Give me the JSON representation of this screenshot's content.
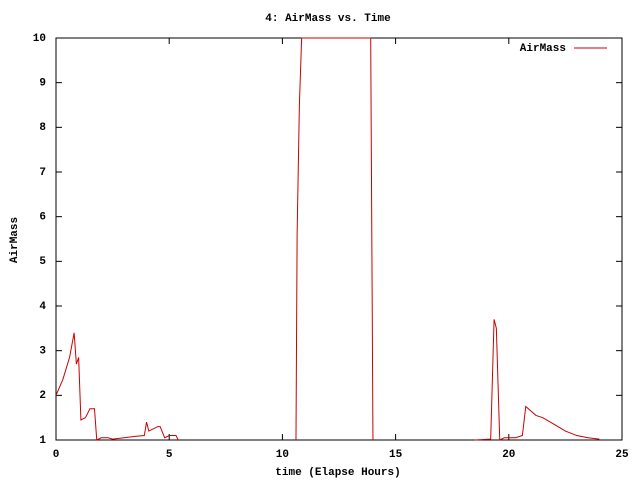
{
  "chart_data": {
    "type": "line",
    "title": "4: AirMass vs. Time",
    "xlabel": "time (Elapse Hours)",
    "ylabel": "AirMass",
    "x": [
      0,
      0.3,
      0.6,
      0.8,
      0.9,
      1.0,
      1.1,
      1.3,
      1.5,
      1.7,
      1.8,
      2.0,
      2.3,
      2.5,
      3.0,
      3.5,
      3.9,
      4.0,
      4.1,
      4.5,
      4.6,
      4.8,
      5.0,
      5.3,
      5.4,
      7,
      10.6,
      10.65,
      10.75,
      10.85,
      13.9,
      13.95,
      14.0,
      16,
      18.5,
      19.2,
      19.35,
      19.45,
      19.6,
      19.8,
      20.3,
      20.6,
      20.75,
      21.2,
      21.5,
      22,
      22.5,
      23,
      23.5,
      24
    ],
    "series": [
      {
        "name": "AirMass",
        "color": "#cc0000",
        "values": [
          2,
          2.35,
          2.85,
          3.4,
          2.7,
          2.85,
          1.45,
          1.5,
          1.7,
          1.7,
          1.0,
          1.05,
          1.05,
          1.02,
          1.05,
          1.08,
          1.1,
          1.4,
          1.2,
          1.3,
          1.3,
          1.05,
          1.1,
          1.1,
          1.0,
          null,
          1.0,
          5.6,
          8.5,
          10,
          10,
          5.5,
          1.0,
          null,
          1.0,
          1.02,
          3.7,
          3.5,
          1.0,
          1.05,
          1.05,
          1.1,
          1.75,
          1.55,
          1.5,
          1.35,
          1.2,
          1.1,
          1.05,
          1.02
        ]
      }
    ],
    "xlim": [
      0,
      25
    ],
    "xticks": [
      0,
      5,
      10,
      15,
      20,
      25
    ],
    "ylim": [
      1,
      10
    ],
    "yticks": [
      1,
      2,
      3,
      4,
      5,
      6,
      7,
      8,
      9,
      10
    ],
    "legend": "top-right",
    "grid": false
  }
}
